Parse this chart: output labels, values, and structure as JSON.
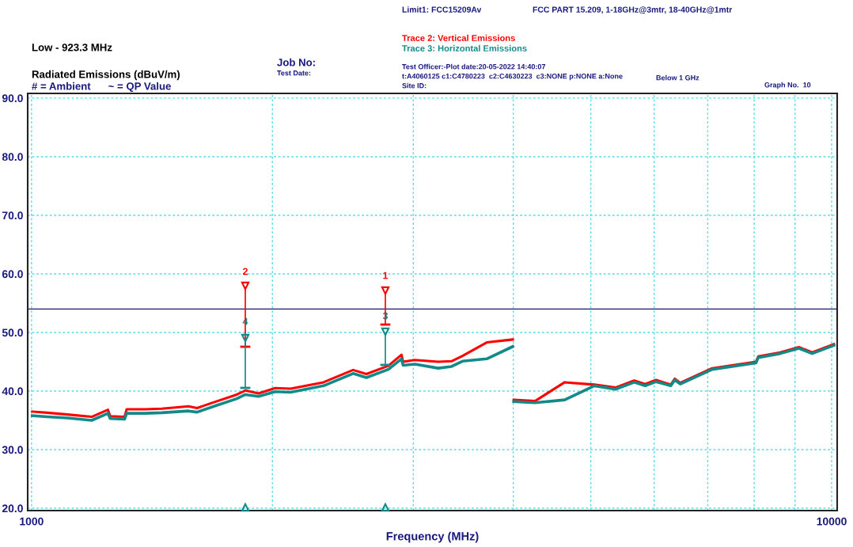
{
  "chart_data": {
    "type": "line",
    "title": "Radiated Emissions (dBuV/m)",
    "subtitle": "Low - 923.3 MHz",
    "xlabel": "Frequency (MHz)",
    "annotations": [
      "# = Ambient      ~ = QP Value",
      "Job No:",
      "Test Date:",
      "Limit1: FCC15209Av",
      "FCC PART 15.209, 1-18GHz@3mtr, 18-40GHz@1mtr",
      "Test Officer:-Plot date:20-05-2022 14:40:07",
      "t:A4060125 c1:C4780223  c2:C4630223  c3:NONE p:NONE a:None",
      "Site ID:",
      "Below 1 GHz",
      "Graph No.  10",
      "2",
      "4",
      "1",
      "3"
    ],
    "x": [
      1002,
      1046,
      1109,
      1189,
      1246,
      1254,
      1307,
      1315,
      1385,
      1455,
      1571,
      1610,
      1699,
      1805,
      1850,
      1922,
      2016,
      2108,
      2317,
      2523,
      2621,
      2792,
      2900,
      2913,
      3013,
      3223,
      3349,
      3456,
      3706,
      3995,
      4000,
      4005,
      4259,
      4638,
      5051,
      5367,
      5665,
      5847,
      6033,
      6295,
      6367,
      6468,
      7090,
      8042,
      8096,
      8623,
      9101,
      9455,
      10067
    ],
    "series": [
      {
        "name": "Trace 2: Vertical Emissions",
        "color": "#ff0000",
        "values": [
          36.5,
          36.3,
          36.0,
          35.6,
          36.8,
          35.7,
          35.6,
          36.9,
          36.9,
          37.0,
          37.4,
          37.1,
          38.2,
          39.4,
          40.1,
          39.6,
          40.5,
          40.4,
          41.5,
          43.6,
          42.9,
          44.3,
          46.2,
          45.0,
          45.3,
          45.0,
          45.1,
          46.0,
          48.3,
          48.8,
          null,
          38.5,
          38.3,
          41.5,
          41.1,
          40.6,
          41.8,
          41.2,
          41.9,
          41.1,
          42.1,
          41.4,
          43.9,
          45.0,
          45.9,
          46.6,
          47.5,
          46.6,
          48.0
        ]
      },
      {
        "name": "Trace 3: Horizontal Emissions",
        "color": "#138a8a",
        "values": [
          35.8,
          35.6,
          35.4,
          35.0,
          36.2,
          35.3,
          35.2,
          36.2,
          36.2,
          36.3,
          36.6,
          36.4,
          37.5,
          38.7,
          39.4,
          39.1,
          39.9,
          39.8,
          40.9,
          43.0,
          42.3,
          43.7,
          45.5,
          44.4,
          44.6,
          43.9,
          44.2,
          45.1,
          45.5,
          47.6,
          null,
          38.2,
          38.0,
          38.5,
          40.9,
          40.3,
          41.5,
          40.9,
          41.6,
          40.9,
          41.9,
          41.2,
          43.7,
          44.8,
          45.7,
          46.4,
          47.3,
          46.4,
          47.8
        ]
      }
    ],
    "ref_lines": [
      {
        "axis": "y",
        "value": 54,
        "color": "#1a1a66"
      }
    ],
    "log": "x",
    "xlim": [
      989,
      10160
    ],
    "ylim": [
      19.6,
      90.8
    ],
    "xticks": [
      1000,
      {
        "value": 2000,
        "label": null
      },
      {
        "value": 3000,
        "label": null
      },
      {
        "value": 4000,
        "label": null
      },
      {
        "value": 5000,
        "label": null
      },
      {
        "value": 6000,
        "label": null
      },
      {
        "value": 7000,
        "label": null
      },
      {
        "value": 8000,
        "label": null
      },
      {
        "value": 9000,
        "label": null
      },
      10000
    ],
    "yticks": [
      {
        "value": 20,
        "label": "20.0"
      },
      {
        "value": 30,
        "label": "30.0"
      },
      {
        "value": 40,
        "label": "40.0"
      },
      {
        "value": 50,
        "label": "50.0"
      },
      {
        "value": 60,
        "label": "60.0"
      },
      {
        "value": 70,
        "label": "70.0"
      },
      {
        "value": 80,
        "label": "80.0"
      },
      {
        "value": 90,
        "label": "90.0"
      }
    ],
    "grid": true,
    "legend": "top",
    "marker": "none",
    "line_style": "solid"
  }
}
